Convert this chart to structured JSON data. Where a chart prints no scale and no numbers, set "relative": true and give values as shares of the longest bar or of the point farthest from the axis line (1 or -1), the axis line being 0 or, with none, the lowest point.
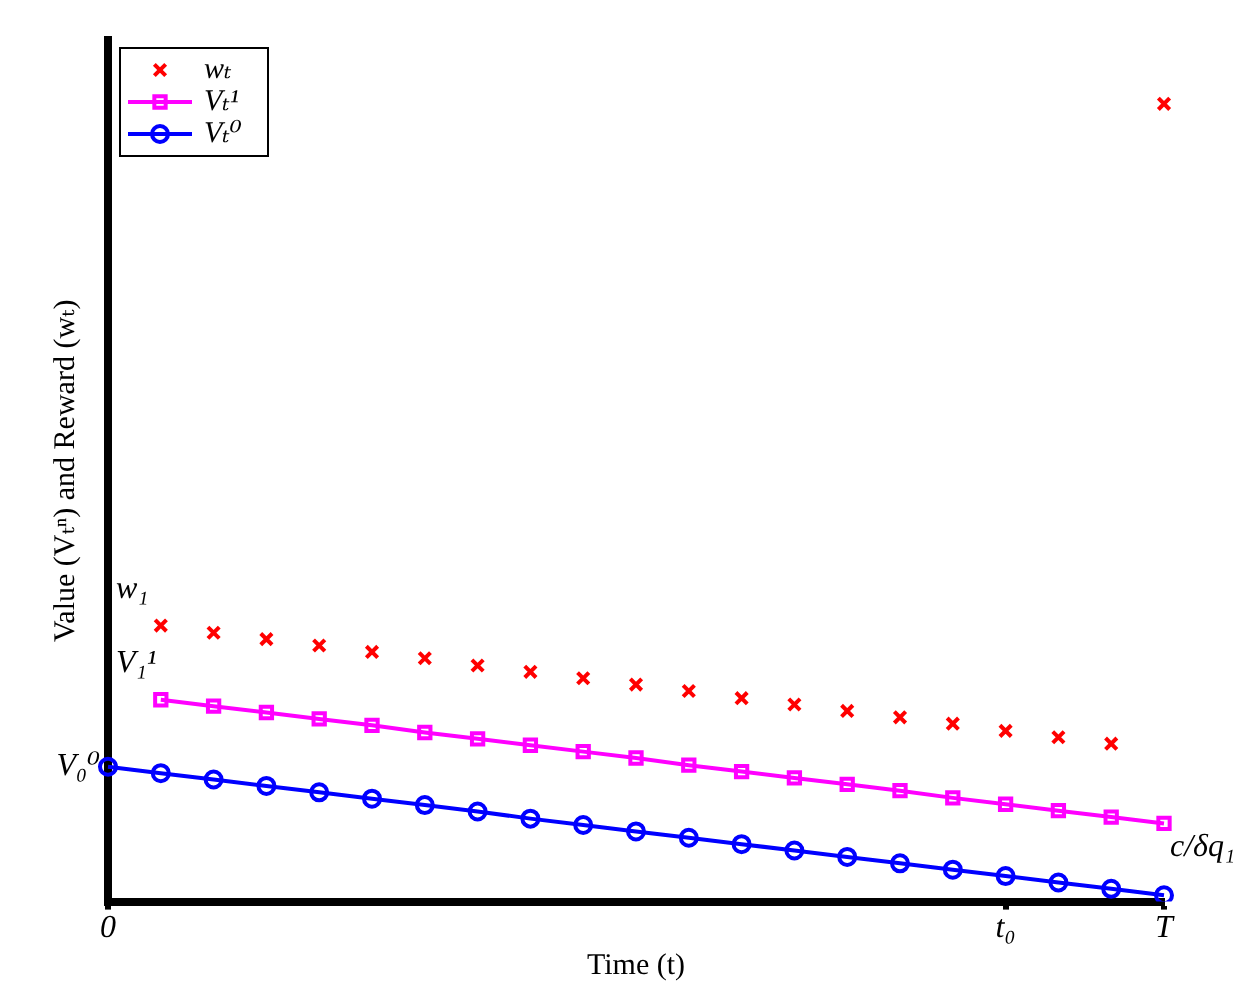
{
  "chart_data": {
    "type": "line",
    "relative": true,
    "xlabel": "Time (t)",
    "ylabel": "Value (Vₜⁿ) and Reward (wₜ)",
    "legend": "top left",
    "grid": false,
    "categories": [
      "0",
      null,
      null,
      null,
      null,
      null,
      null,
      null,
      null,
      null,
      null,
      null,
      null,
      null,
      null,
      null,
      null,
      "t₀",
      null,
      null,
      "T"
    ],
    "series": [
      {
        "name": "wₜ",
        "type": "scatter",
        "marker": "cross",
        "color": "#ff0000",
        "values": [
          null,
          0.346,
          0.337,
          0.329,
          0.321,
          0.313,
          0.305,
          0.296,
          0.288,
          0.28,
          0.272,
          0.264,
          0.255,
          0.247,
          0.239,
          0.231,
          0.223,
          0.214,
          0.206,
          0.198,
          1
        ]
      },
      {
        "name": "Vₜ¹",
        "marker": "square",
        "color": "#ff00ff",
        "values": [
          null,
          0.253,
          0.245,
          0.237,
          0.229,
          0.221,
          0.212,
          0.204,
          0.196,
          0.188,
          0.18,
          0.171,
          0.163,
          0.155,
          0.147,
          0.139,
          0.13,
          0.122,
          0.114,
          0.106,
          0.098
        ]
      },
      {
        "name": "Vₜ⁰",
        "marker": "circle",
        "color": "#0000ff",
        "values": [
          0.169,
          0.161,
          0.153,
          0.145,
          0.137,
          0.129,
          0.121,
          0.113,
          0.104,
          0.096,
          0.088,
          0.08,
          0.072,
          0.064,
          0.056,
          0.048,
          0.04,
          0.032,
          0.024,
          0.016,
          0.008
        ]
      }
    ],
    "annotations": [
      "w₁",
      "V₁¹",
      {
        "text": "V₀⁰",
        "x": "0",
        "y": 0.169
      },
      {
        "text": "c/δq₁",
        "x": "T",
        "y": 0.098
      }
    ]
  }
}
